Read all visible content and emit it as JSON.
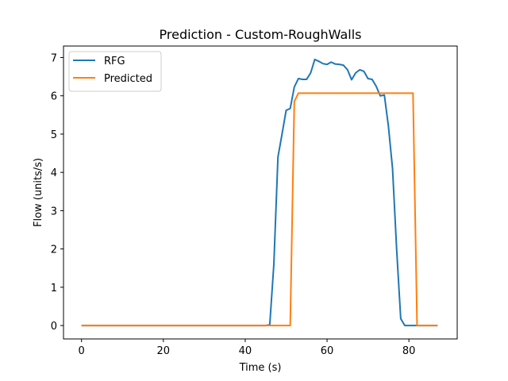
{
  "chart_data": {
    "type": "line",
    "title": "Prediction - Custom-RoughWalls",
    "xlabel": "Time (s)",
    "ylabel": "Flow (units/s)",
    "xlim": [
      -4.4,
      91.8
    ],
    "ylim": [
      -0.35,
      7.3
    ],
    "xticks": [
      0,
      20,
      40,
      60,
      80
    ],
    "yticks": [
      0,
      1,
      2,
      3,
      4,
      5,
      6,
      7
    ],
    "grid": false,
    "legend_position": "top-left",
    "series": [
      {
        "name": "RFG",
        "color": "#1f77b4",
        "x": [
          0,
          10,
          20,
          30,
          40,
          45,
          46,
          47,
          48,
          49,
          50,
          51,
          52,
          53,
          54,
          55,
          56,
          57,
          58,
          59,
          60,
          61,
          62,
          63,
          64,
          65,
          66,
          67,
          68,
          69,
          70,
          71,
          72,
          73,
          74,
          75,
          76,
          77,
          78,
          79,
          80,
          81,
          82,
          83,
          84,
          85,
          86,
          87
        ],
        "y": [
          0,
          0,
          0,
          0,
          0,
          0,
          0.02,
          1.6,
          4.4,
          5.0,
          5.62,
          5.67,
          6.23,
          6.45,
          6.43,
          6.43,
          6.6,
          6.95,
          6.9,
          6.84,
          6.82,
          6.88,
          6.83,
          6.82,
          6.8,
          6.68,
          6.42,
          6.6,
          6.68,
          6.64,
          6.45,
          6.43,
          6.25,
          6.0,
          6.02,
          5.2,
          4.1,
          2.0,
          0.18,
          0.0,
          0.0,
          0.0,
          0.0,
          0.0,
          0.0,
          0.0,
          0.0,
          0.0
        ]
      },
      {
        "name": "Predicted",
        "color": "#ff7f0e",
        "x": [
          0,
          10,
          20,
          30,
          40,
          50,
          51,
          52,
          53,
          60,
          70,
          78,
          80,
          81,
          82,
          83,
          85,
          87
        ],
        "y": [
          0,
          0,
          0,
          0,
          0,
          0,
          0,
          5.85,
          6.07,
          6.07,
          6.07,
          6.07,
          6.07,
          6.07,
          0,
          0,
          0,
          0
        ]
      }
    ]
  }
}
